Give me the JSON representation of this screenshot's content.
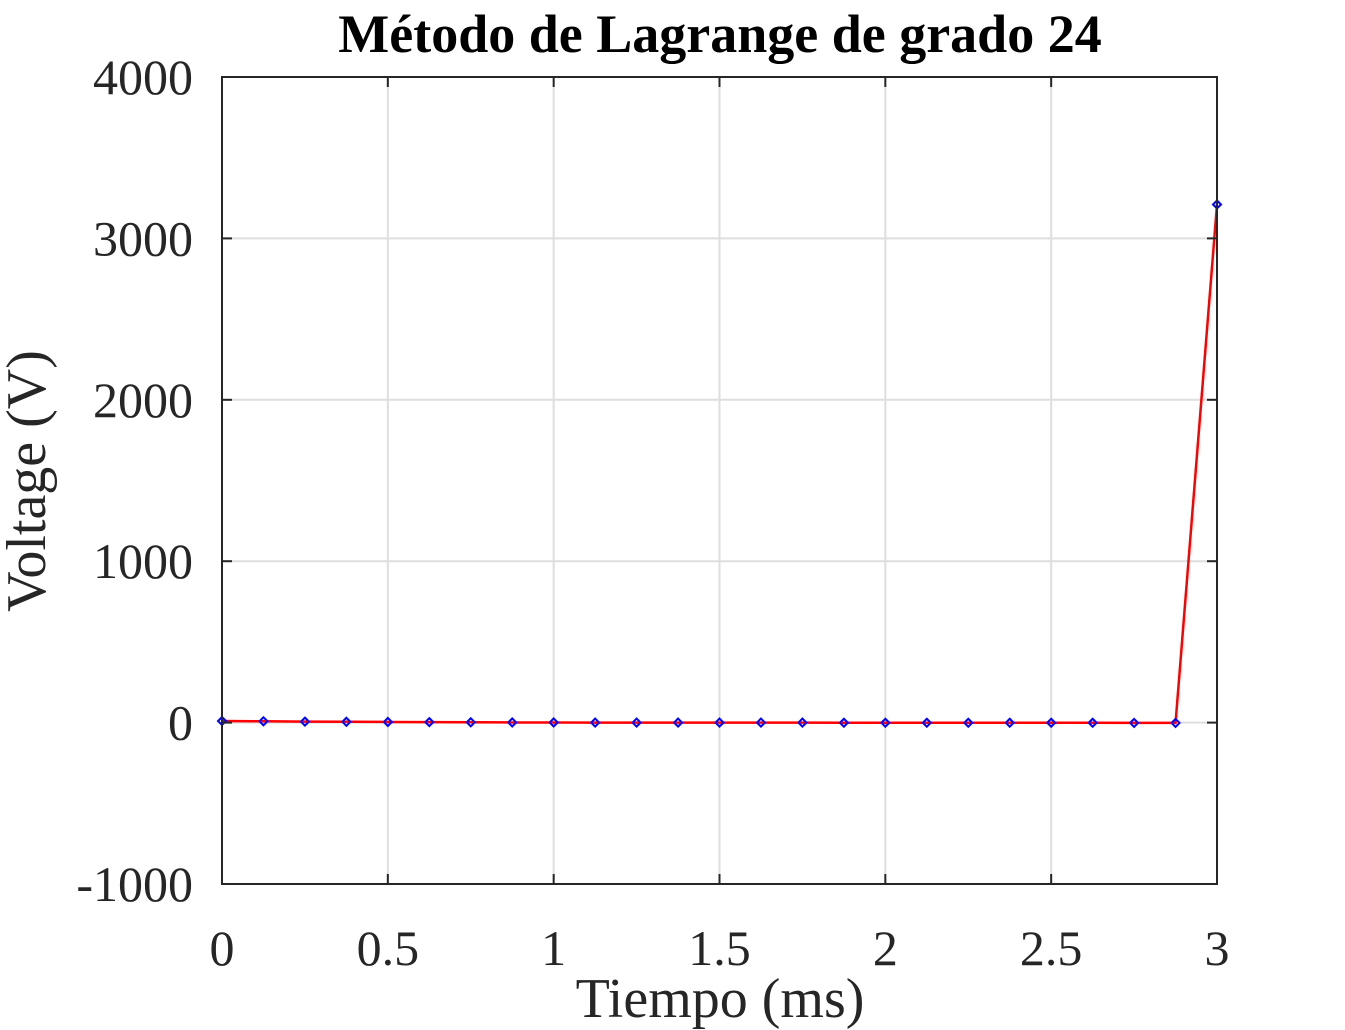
{
  "chart_data": {
    "type": "line",
    "title": "Método de Lagrange de grado 24",
    "xlabel": "Tiempo (ms)",
    "ylabel": "Voltage (V)",
    "xlim": [
      0,
      3
    ],
    "ylim": [
      -1000,
      4000
    ],
    "xticks": [
      0,
      0.5,
      1,
      1.5,
      2,
      2.5,
      3
    ],
    "xtick_labels": [
      "0",
      "0.5",
      "1",
      "1.5",
      "2",
      "2.5",
      "3"
    ],
    "yticks": [
      -1000,
      0,
      1000,
      2000,
      3000,
      4000
    ],
    "ytick_labels": [
      "-1000",
      "0",
      "1000",
      "2000",
      "3000",
      "4000"
    ],
    "grid": true,
    "series": [
      {
        "line_color": "#ff0000",
        "marker_color": "#0000ff",
        "marker": "diamond",
        "x": [
          0,
          0.125,
          0.25,
          0.375,
          0.5,
          0.625,
          0.75,
          0.875,
          1,
          1.125,
          1.25,
          1.375,
          1.5,
          1.625,
          1.75,
          1.875,
          2,
          2.125,
          2.25,
          2.375,
          2.5,
          2.625,
          2.75,
          2.875,
          3
        ],
        "y": [
          10,
          8,
          6,
          5,
          4,
          3,
          2,
          1,
          1,
          0,
          0,
          0,
          0,
          0,
          0,
          -1,
          -1,
          -1,
          -1,
          -1,
          -1,
          -1,
          -2,
          -2,
          3210
        ]
      }
    ]
  }
}
